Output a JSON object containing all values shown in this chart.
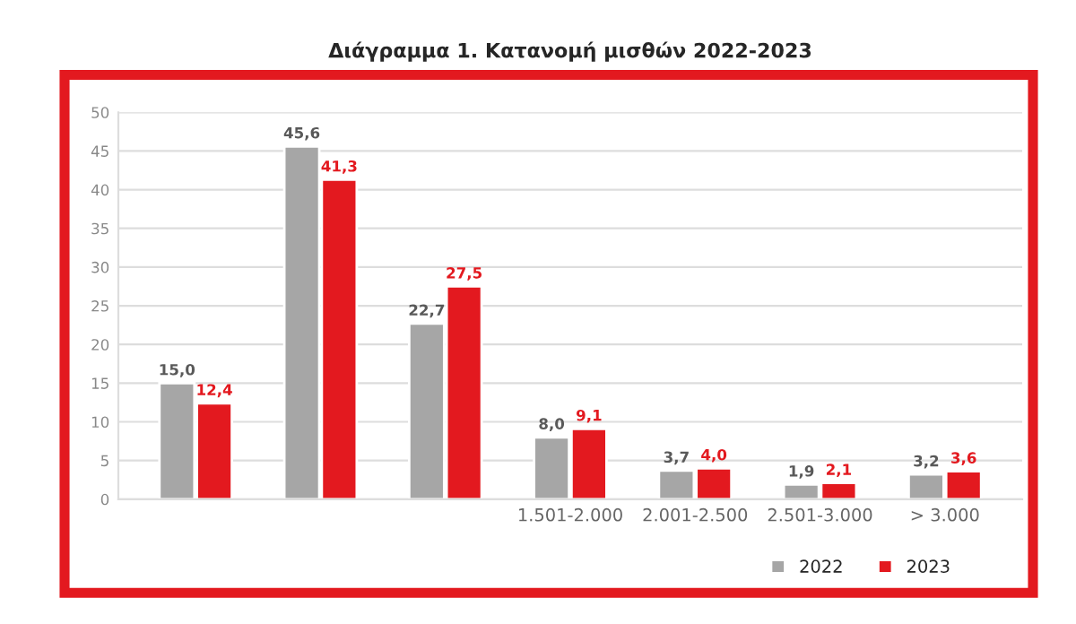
{
  "chart_data": {
    "type": "bar",
    "title": "Διάγραμμα 1. Κατανομή μισθών 2022-2023",
    "categories": [
      null,
      null,
      null,
      "1.501-2.000",
      "2.001-2.500",
      "2.501-3.000",
      "> 3.000"
    ],
    "series": [
      {
        "name": "2022",
        "color": "#a6a6a6",
        "values": [
          15.0,
          45.6,
          22.7,
          8.0,
          3.7,
          1.9,
          3.2
        ],
        "value_labels": [
          "15,0",
          "45,6",
          "22,7",
          "8,0",
          "3,7",
          "1,9",
          "3,2"
        ]
      },
      {
        "name": "2023",
        "color": "#e3191f",
        "values": [
          12.4,
          41.3,
          27.5,
          9.1,
          4.0,
          2.1,
          3.6
        ],
        "value_labels": [
          "12,4",
          "41,3",
          "27,5",
          "9,1",
          "4,0",
          "2,1",
          "3,6"
        ]
      }
    ],
    "ylim": [
      0,
      50
    ],
    "yticks": [
      0,
      5,
      10,
      15,
      20,
      25,
      30,
      35,
      40,
      45,
      50
    ],
    "grid": "y",
    "legend": "bottom right"
  }
}
